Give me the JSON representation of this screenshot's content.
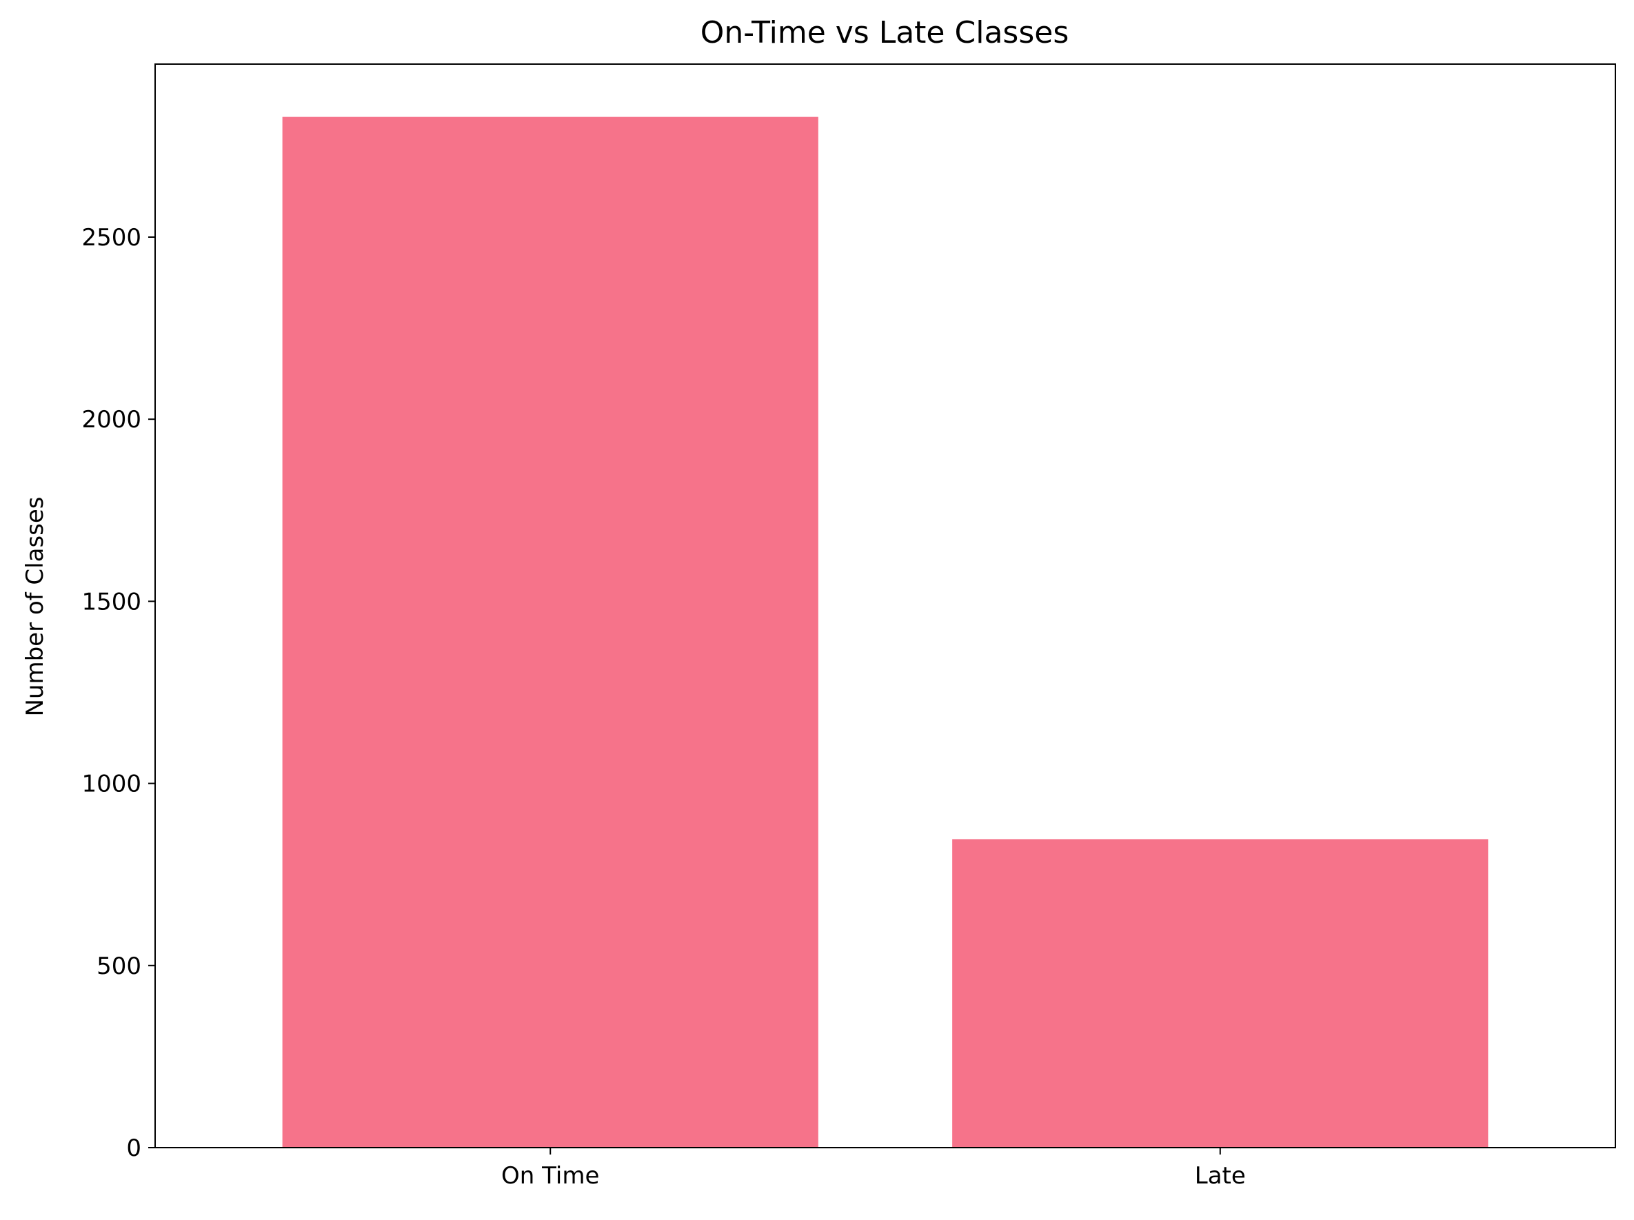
{
  "chart_data": {
    "type": "bar",
    "title": "On-Time vs Late Classes",
    "xlabel": "",
    "ylabel": "Number of Classes",
    "categories": [
      "On Time",
      "Late"
    ],
    "values": [
      2830,
      847
    ],
    "ylim": [
      0,
      2975
    ],
    "yticks": [
      0,
      500,
      1000,
      1500,
      2000,
      2500
    ],
    "grid": false,
    "legend": "none",
    "bar_color": "#f6738a",
    "axis_color": "#000000"
  }
}
